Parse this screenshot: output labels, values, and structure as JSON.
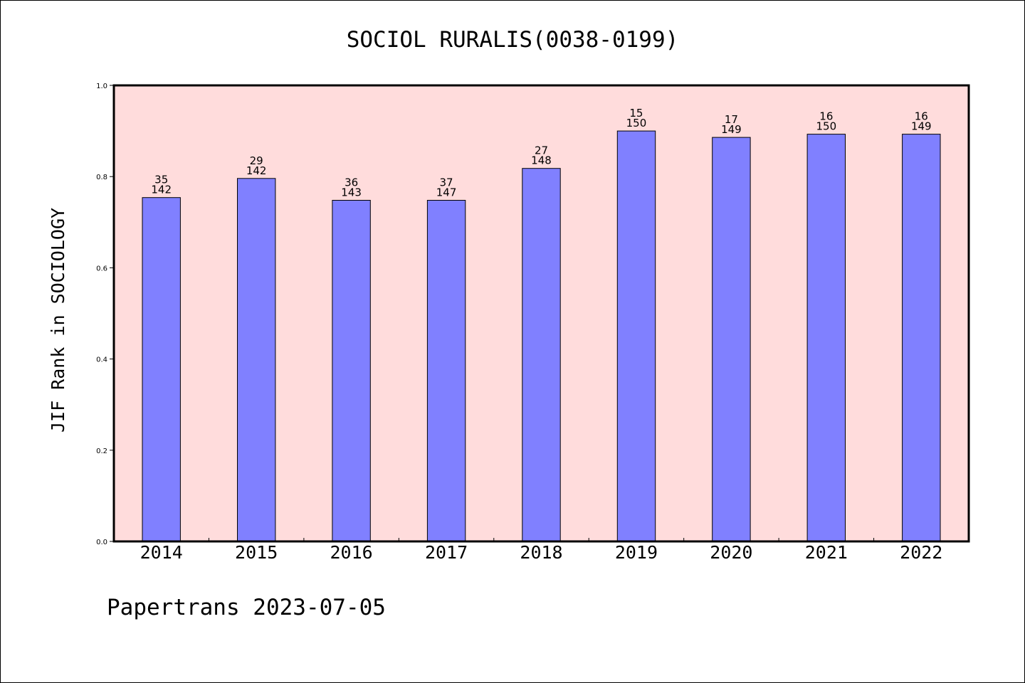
{
  "chart_data": {
    "type": "bar",
    "title": "SOCIOL RURALIS(0038-0199)",
    "ylabel": "JIF Rank in SOCIOLOGY",
    "xlabel": "",
    "ylim": [
      0,
      1.0
    ],
    "yticks": [
      "0.0",
      "0.2",
      "0.4",
      "0.6",
      "0.8",
      "1.0"
    ],
    "grid": false,
    "categories": [
      "2014",
      "2015",
      "2016",
      "2017",
      "2018",
      "2019",
      "2020",
      "2021",
      "2022"
    ],
    "values": [
      0.754,
      0.796,
      0.748,
      0.748,
      0.818,
      0.9,
      0.886,
      0.893,
      0.893
    ],
    "rank": [
      "35",
      "29",
      "36",
      "37",
      "27",
      "15",
      "17",
      "16",
      "16"
    ],
    "total": [
      "142",
      "142",
      "143",
      "147",
      "148",
      "150",
      "149",
      "150",
      "149"
    ],
    "bar_color": "#8080ff",
    "plot_background": "#ffdcdc"
  },
  "footer": "Papertrans 2023-07-05"
}
